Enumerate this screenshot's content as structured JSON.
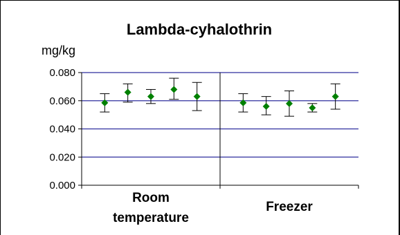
{
  "chart_data": {
    "type": "scatter",
    "title": "Lambda-cyhalothrin",
    "ylabel": "mg/kg",
    "xlabel": "",
    "ylim": [
      0,
      0.08
    ],
    "yticks": [
      "0.000",
      "0.020",
      "0.040",
      "0.060",
      "0.080"
    ],
    "ytick_values": [
      0,
      0.02,
      0.04,
      0.06,
      0.08
    ],
    "grid": true,
    "grid_color": "#2e2e9e",
    "marker_color": "#008000",
    "marker_shape": "diamond",
    "error_bar_color": "#000000",
    "categories": [
      {
        "label_lines": [
          "Room",
          "temperature"
        ],
        "points": [
          {
            "value": 0.0585,
            "low": 0.052,
            "high": 0.065
          },
          {
            "value": 0.066,
            "low": 0.059,
            "high": 0.072
          },
          {
            "value": 0.063,
            "low": 0.058,
            "high": 0.068
          },
          {
            "value": 0.068,
            "low": 0.061,
            "high": 0.076
          },
          {
            "value": 0.063,
            "low": 0.053,
            "high": 0.073
          }
        ]
      },
      {
        "label_lines": [
          "Freezer"
        ],
        "points": [
          {
            "value": 0.0585,
            "low": 0.052,
            "high": 0.065
          },
          {
            "value": 0.056,
            "low": 0.05,
            "high": 0.063
          },
          {
            "value": 0.058,
            "low": 0.049,
            "high": 0.067
          },
          {
            "value": 0.055,
            "low": 0.052,
            "high": 0.058
          },
          {
            "value": 0.063,
            "low": 0.054,
            "high": 0.072
          }
        ]
      }
    ]
  }
}
